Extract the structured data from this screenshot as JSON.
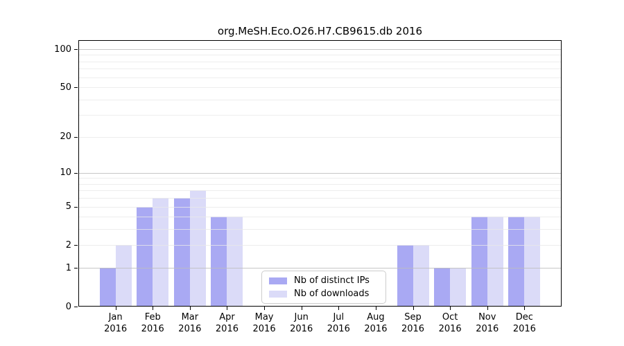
{
  "chart_data": {
    "type": "bar",
    "title": "org.MeSH.Eco.O26.H7.CB9615.db 2016",
    "categories": [
      "Jan",
      "Feb",
      "Mar",
      "Apr",
      "May",
      "Jun",
      "Jul",
      "Aug",
      "Sep",
      "Oct",
      "Nov",
      "Dec"
    ],
    "category_year": "2016",
    "series": [
      {
        "name": "Nb of distinct IPs",
        "color": "#a9a9f3",
        "values": [
          1,
          5,
          6,
          4,
          0,
          0,
          0,
          0,
          2,
          1,
          4,
          4
        ]
      },
      {
        "name": "Nb of downloads",
        "color": "#dbdbf8",
        "values": [
          2,
          6,
          7,
          4,
          0,
          0,
          0,
          0,
          2,
          1,
          4,
          4
        ]
      }
    ],
    "yscale": "log1p",
    "ylim": [
      0,
      100
    ],
    "xlim": [
      -1,
      12
    ],
    "ytick_labels": [
      "0",
      "1",
      "2",
      "5",
      "10",
      "20",
      "50",
      "100"
    ],
    "ytick_values": [
      0,
      1,
      2,
      5,
      10,
      20,
      50,
      100
    ],
    "major_gridline_values": [
      1,
      10,
      100
    ],
    "minor_gridline_values": [
      2,
      3,
      4,
      5,
      6,
      7,
      8,
      9,
      20,
      30,
      40,
      50,
      60,
      70,
      80,
      90
    ],
    "grid": true,
    "legend": {
      "position": "lower-center-inside",
      "items": [
        "Nb of distinct IPs",
        "Nb of downloads"
      ]
    },
    "colors": {
      "bar_distinct_ips": "#a9a9f3",
      "bar_downloads": "#dbdbf8",
      "axis": "#000000",
      "major_grid": "#bdbdbd",
      "minor_grid": "#e8e8e8",
      "background": "#ffffff"
    }
  }
}
